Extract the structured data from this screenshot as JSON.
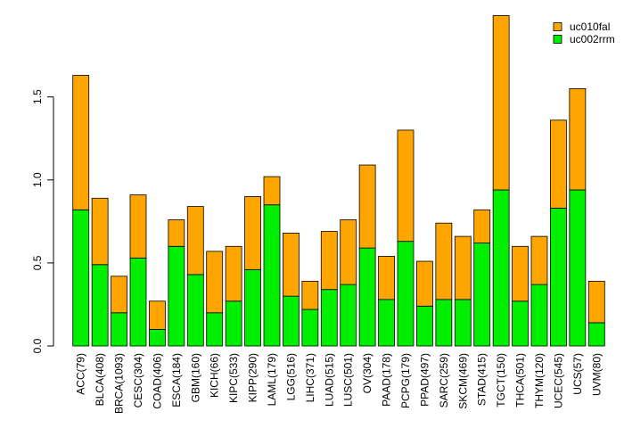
{
  "chart_data": {
    "type": "bar",
    "stacked": true,
    "title": "",
    "xlabel": "",
    "ylabel": "",
    "ylim": [
      0,
      2.0
    ],
    "yticks": [
      0.0,
      0.5,
      1.0,
      1.5
    ],
    "ytick_labels": [
      "0.0",
      "0.5",
      "1.0",
      "1.5"
    ],
    "grid": false,
    "legend_position": "top-right",
    "categories": [
      "ACC(79)",
      "BLCA(408)",
      "BRCA(1093)",
      "CESC(304)",
      "COAD(406)",
      "ESCA(184)",
      "GBM(160)",
      "KICH(66)",
      "KIPC(533)",
      "KIPP(290)",
      "LAML(179)",
      "LGG(516)",
      "LIHC(371)",
      "LUAD(515)",
      "LUSC(501)",
      "OV(304)",
      "PAAD(178)",
      "PCPG(179)",
      "PPAD(497)",
      "SARC(259)",
      "SKCM(469)",
      "STAD(415)",
      "TGCT(150)",
      "THCA(501)",
      "THYM(120)",
      "UCEC(545)",
      "UCS(57)",
      "UVM(80)"
    ],
    "series": [
      {
        "name": "uc002rrm",
        "color": "#00ee00",
        "values": [
          0.82,
          0.49,
          0.2,
          0.53,
          0.1,
          0.6,
          0.43,
          0.2,
          0.27,
          0.46,
          0.85,
          0.3,
          0.22,
          0.34,
          0.37,
          0.59,
          0.28,
          0.63,
          0.24,
          0.28,
          0.28,
          0.62,
          0.94,
          0.27,
          0.37,
          0.83,
          0.94,
          0.14
        ]
      },
      {
        "name": "uc010fal",
        "color": "#ffa500",
        "values": [
          0.81,
          0.4,
          0.22,
          0.38,
          0.17,
          0.16,
          0.41,
          0.37,
          0.33,
          0.44,
          0.17,
          0.38,
          0.17,
          0.35,
          0.39,
          0.5,
          0.26,
          0.67,
          0.27,
          0.46,
          0.38,
          0.2,
          1.05,
          0.33,
          0.29,
          0.53,
          0.61,
          0.25
        ]
      }
    ],
    "legend_order": [
      "uc010fal",
      "uc002rrm"
    ]
  }
}
